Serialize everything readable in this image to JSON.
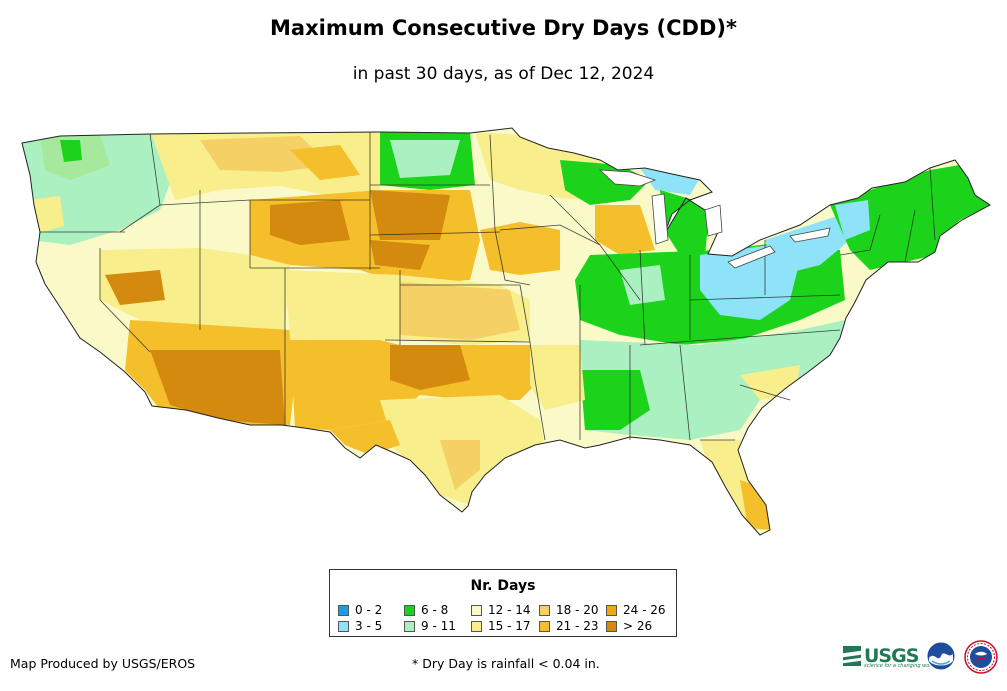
{
  "title": "Maximum Consecutive Dry Days (CDD)*",
  "subtitle": "in past 30 days, as of Dec 12, 2024",
  "legend": {
    "title": "Nr. Days",
    "items": [
      {
        "label": "0 - 2",
        "color": "#1c9be8"
      },
      {
        "label": "3 - 5",
        "color": "#8ee3f8"
      },
      {
        "label": "6 - 8",
        "color": "#1cd31c"
      },
      {
        "label": "9 - 11",
        "color": "#abf0c0"
      },
      {
        "label": "12 - 14",
        "color": "#fafac8"
      },
      {
        "label": "15 - 17",
        "color": "#f8ee8c"
      },
      {
        "label": "18 - 20",
        "color": "#f5d064"
      },
      {
        "label": "21 - 23",
        "color": "#f4bf2a"
      },
      {
        "label": "24 - 26",
        "color": "#ef a810"
      },
      {
        "label": "> 26",
        "color": "#d38a0e"
      }
    ]
  },
  "footer": {
    "produced_by": "Map Produced by USGS/EROS",
    "note": "* Dry Day is rainfall < 0.04 in."
  },
  "logos": {
    "usgs_text": "USGS",
    "usgs_tagline": "science for a changing world",
    "noaa_icon": "noaa-logo-icon",
    "nws_icon": "nws-logo-icon"
  }
}
